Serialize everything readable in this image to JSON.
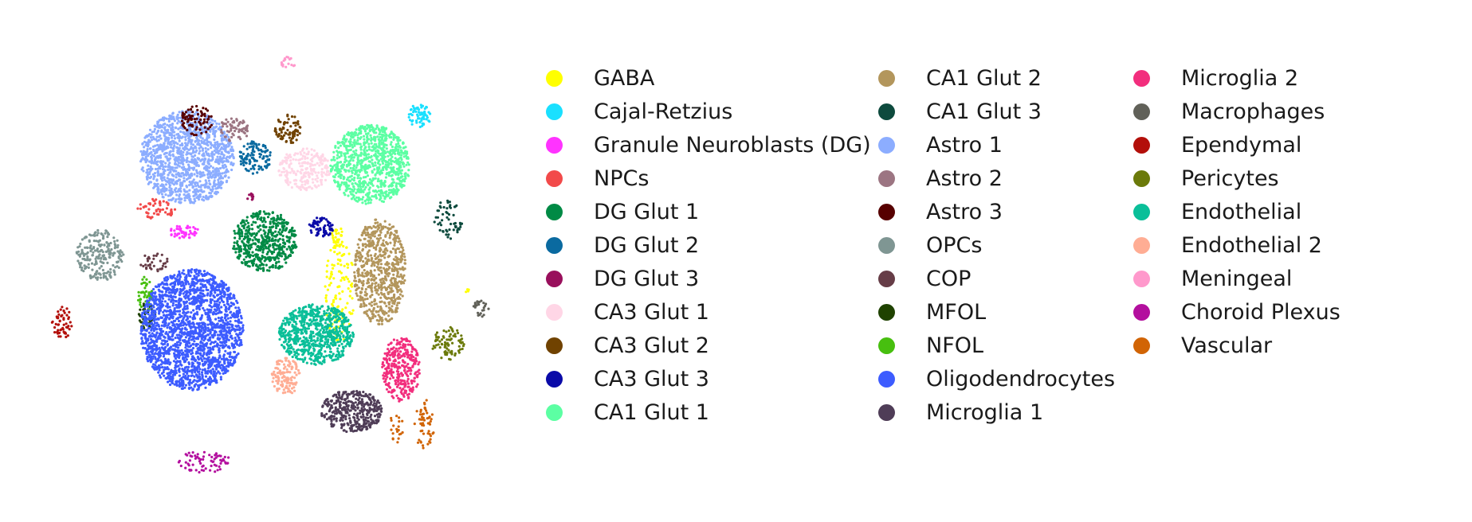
{
  "chart_data": {
    "type": "scatter",
    "title": "",
    "xlabel": "",
    "ylabel": "",
    "axes_visible": false,
    "grid": false,
    "legend_placement": "right",
    "legend_columns": 3,
    "xlim": [
      0,
      100
    ],
    "ylim": [
      0,
      100
    ],
    "series": [
      {
        "name": "GABA",
        "color": "#ffff00",
        "clusters": [
          {
            "cx": 65.5,
            "cy": 44.5,
            "rx": 3.2,
            "ry": 11,
            "n": 140
          },
          {
            "cx": 64.8,
            "cy": 56.5,
            "rx": 1.2,
            "ry": 2,
            "n": 25
          },
          {
            "cx": 92.5,
            "cy": 44.5,
            "rx": 0.5,
            "ry": 0.6,
            "n": 4
          }
        ]
      },
      {
        "name": "Cajal-Retzius",
        "color": "#1ae0ff",
        "clusters": [
          {
            "cx": 82.5,
            "cy": 82,
            "rx": 2.4,
            "ry": 2.6,
            "n": 60
          }
        ]
      },
      {
        "name": "Granule Neuroblasts (DG)",
        "color": "#ff33ff",
        "clusters": [
          {
            "cx": 32.5,
            "cy": 57,
            "rx": 3.5,
            "ry": 1.4,
            "n": 45
          }
        ]
      },
      {
        "name": "NPCs",
        "color": "#f24a4a",
        "clusters": [
          {
            "cx": 26.5,
            "cy": 62,
            "rx": 4,
            "ry": 2.2,
            "n": 55
          }
        ]
      },
      {
        "name": "DG Glut 1",
        "color": "#008a45",
        "clusters": [
          {
            "cx": 49.5,
            "cy": 55,
            "rx": 7,
            "ry": 6.5,
            "n": 520
          }
        ]
      },
      {
        "name": "DG Glut 2",
        "color": "#0a6aa0",
        "clusters": [
          {
            "cx": 47.5,
            "cy": 73,
            "rx": 3.4,
            "ry": 3.6,
            "n": 110
          }
        ]
      },
      {
        "name": "DG Glut 3",
        "color": "#990f5c",
        "clusters": [
          {
            "cx": 46.5,
            "cy": 64.5,
            "rx": 0.7,
            "ry": 0.8,
            "n": 10
          }
        ]
      },
      {
        "name": "CA3 Glut 1",
        "color": "#ffd6e6",
        "clusters": [
          {
            "cx": 58,
            "cy": 70.5,
            "rx": 5.5,
            "ry": 4.5,
            "n": 220
          }
        ]
      },
      {
        "name": "CA3 Glut 2",
        "color": "#704200",
        "clusters": [
          {
            "cx": 54.5,
            "cy": 79,
            "rx": 2.8,
            "ry": 3.2,
            "n": 80
          }
        ]
      },
      {
        "name": "CA3 Glut 3",
        "color": "#0a0aa8",
        "clusters": [
          {
            "cx": 61.5,
            "cy": 58,
            "rx": 2.6,
            "ry": 2.2,
            "n": 70
          }
        ]
      },
      {
        "name": "CA1 Glut 1",
        "color": "#5cffa3",
        "clusters": [
          {
            "cx": 72,
            "cy": 71.5,
            "rx": 8.5,
            "ry": 8.5,
            "n": 900
          }
        ]
      },
      {
        "name": "CA1 Glut 2",
        "color": "#b3965c",
        "clusters": [
          {
            "cx": 74,
            "cy": 48.5,
            "rx": 5.5,
            "ry": 11.5,
            "n": 650
          }
        ]
      },
      {
        "name": "CA1 Glut 3",
        "color": "#0d4a3d",
        "clusters": [
          {
            "cx": 88.5,
            "cy": 59.5,
            "rx": 3,
            "ry": 4.5,
            "n": 55
          }
        ]
      },
      {
        "name": "Astro 1",
        "color": "#8cadff",
        "clusters": [
          {
            "cx": 33,
            "cy": 73,
            "rx": 10,
            "ry": 10,
            "n": 1300
          }
        ]
      },
      {
        "name": "Astro 2",
        "color": "#9c7582",
        "clusters": [
          {
            "cx": 43,
            "cy": 79,
            "rx": 3.2,
            "ry": 2.6,
            "n": 70
          }
        ]
      },
      {
        "name": "Astro 3",
        "color": "#570000",
        "clusters": [
          {
            "cx": 35,
            "cy": 81,
            "rx": 3.4,
            "ry": 3.2,
            "n": 80
          }
        ]
      },
      {
        "name": "OPCs",
        "color": "#7f9693",
        "clusters": [
          {
            "cx": 14.5,
            "cy": 52,
            "rx": 5,
            "ry": 5.5,
            "n": 220
          }
        ]
      },
      {
        "name": "COP",
        "color": "#663d47",
        "clusters": [
          {
            "cx": 26,
            "cy": 50.5,
            "rx": 3,
            "ry": 2,
            "n": 35
          }
        ]
      },
      {
        "name": "MFOL",
        "color": "#1f4200",
        "clusters": [
          {
            "cx": 24.5,
            "cy": 39,
            "rx": 1.8,
            "ry": 3,
            "n": 50
          }
        ]
      },
      {
        "name": "NFOL",
        "color": "#47bf0f",
        "clusters": [
          {
            "cx": 24,
            "cy": 43.5,
            "rx": 1.6,
            "ry": 4,
            "n": 45
          }
        ]
      },
      {
        "name": "Oligodendrocytes",
        "color": "#3d5cff",
        "clusters": [
          {
            "cx": 34,
            "cy": 36,
            "rx": 11,
            "ry": 13,
            "n": 2000
          }
        ]
      },
      {
        "name": "Microglia 1",
        "color": "#4f3d57",
        "clusters": [
          {
            "cx": 68,
            "cy": 18.5,
            "rx": 6.5,
            "ry": 4.5,
            "n": 380
          }
        ]
      },
      {
        "name": "Microglia 2",
        "color": "#f22e7d",
        "clusters": [
          {
            "cx": 78.5,
            "cy": 27.5,
            "rx": 4,
            "ry": 7,
            "n": 320
          }
        ]
      },
      {
        "name": "Macrophages",
        "color": "#616159",
        "clusters": [
          {
            "cx": 95.5,
            "cy": 40.5,
            "rx": 1.8,
            "ry": 1.8,
            "n": 25
          }
        ]
      },
      {
        "name": "Ependymal",
        "color": "#b30f0a",
        "clusters": [
          {
            "cx": 6.5,
            "cy": 37.5,
            "rx": 2.2,
            "ry": 3.4,
            "n": 55
          }
        ]
      },
      {
        "name": "Pericytes",
        "color": "#6b7a0a",
        "clusters": [
          {
            "cx": 88.5,
            "cy": 33,
            "rx": 3.4,
            "ry": 3.6,
            "n": 80
          }
        ]
      },
      {
        "name": "Endothelial",
        "color": "#0abf99",
        "clusters": [
          {
            "cx": 60.5,
            "cy": 35,
            "rx": 8,
            "ry": 6.5,
            "n": 700
          }
        ]
      },
      {
        "name": "Endothelial 2",
        "color": "#ffad94",
        "clusters": [
          {
            "cx": 54,
            "cy": 26,
            "rx": 3,
            "ry": 4,
            "n": 120
          }
        ]
      },
      {
        "name": "Meningeal",
        "color": "#ff99cc",
        "clusters": [
          {
            "cx": 54.5,
            "cy": 93.5,
            "rx": 1.6,
            "ry": 1.4,
            "n": 18
          }
        ]
      },
      {
        "name": "Choroid Plexus",
        "color": "#b30f9e",
        "clusters": [
          {
            "cx": 36.5,
            "cy": 7.5,
            "rx": 6,
            "ry": 2.4,
            "n": 70
          }
        ]
      },
      {
        "name": "Vascular",
        "color": "#d16405",
        "clusters": [
          {
            "cx": 83.5,
            "cy": 15.5,
            "rx": 2.2,
            "ry": 5.5,
            "n": 55
          },
          {
            "cx": 77.5,
            "cy": 15,
            "rx": 1.4,
            "ry": 4,
            "n": 20
          }
        ]
      }
    ]
  }
}
